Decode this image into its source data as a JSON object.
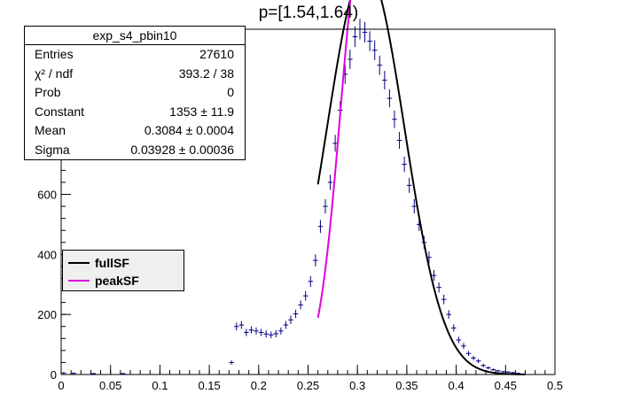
{
  "title": "p=[1.54,1.64)",
  "stats": {
    "name": "exp_s4_pbin10",
    "rows": [
      {
        "label": "Entries",
        "value": "27610"
      },
      {
        "label": "χ² / ndf",
        "value": "393.2 / 38"
      },
      {
        "label": "Prob",
        "value": "0"
      },
      {
        "label": "Constant",
        "value": "1353 ± 11.9"
      },
      {
        "label": "Mean",
        "value": "0.3084 ± 0.0004"
      },
      {
        "label": "Sigma",
        "value": "0.03928 ± 0.00036"
      }
    ]
  },
  "legend": {
    "items": [
      {
        "label": "fullSF",
        "color": "#000000"
      },
      {
        "label": "peakSF",
        "color": "#e000e0"
      }
    ]
  },
  "chart_data": {
    "type": "scatter",
    "title": "p=[1.54,1.64)",
    "xlim": [
      0,
      0.5
    ],
    "ylim": [
      0,
      1150
    ],
    "x_ticks": [
      "0",
      "0.05",
      "0.1",
      "0.15",
      "0.2",
      "0.25",
      "0.3",
      "0.35",
      "0.4",
      "0.45",
      "0.5"
    ],
    "y_ticks": [
      "0",
      "200",
      "400",
      "600",
      "800",
      "1000"
    ],
    "bin_width": 0.005,
    "series": [
      {
        "name": "exp_s4_pbin10",
        "marker": "cross",
        "color": "#000080",
        "x": [
          0.0025,
          0.0125,
          0.0325,
          0.0625,
          0.1725,
          0.1775,
          0.1825,
          0.1875,
          0.1925,
          0.1975,
          0.2025,
          0.2075,
          0.2125,
          0.2175,
          0.2225,
          0.2275,
          0.2325,
          0.2375,
          0.2425,
          0.2475,
          0.2525,
          0.2575,
          0.2625,
          0.2675,
          0.2725,
          0.2775,
          0.2825,
          0.2875,
          0.2925,
          0.2975,
          0.3025,
          0.3075,
          0.3125,
          0.3175,
          0.3225,
          0.3275,
          0.3325,
          0.3375,
          0.3425,
          0.3475,
          0.3525,
          0.3575,
          0.3625,
          0.3675,
          0.3725,
          0.3775,
          0.3825,
          0.3875,
          0.3925,
          0.3975,
          0.4025,
          0.4075,
          0.4125,
          0.4175,
          0.4225,
          0.4275,
          0.4325,
          0.4375,
          0.4425,
          0.4475,
          0.4525,
          0.4575,
          0.4625
        ],
        "y": [
          5,
          4,
          3,
          3,
          40,
          160,
          165,
          140,
          148,
          145,
          140,
          135,
          132,
          136,
          145,
          165,
          182,
          202,
          232,
          262,
          310,
          380,
          493,
          560,
          640,
          770,
          880,
          1000,
          1050,
          1125,
          1150,
          1140,
          1110,
          1080,
          1030,
          980,
          920,
          850,
          780,
          700,
          630,
          560,
          500,
          440,
          390,
          330,
          290,
          250,
          200,
          155,
          115,
          95,
          70,
          55,
          45,
          30,
          22,
          16,
          12,
          9,
          8,
          6,
          4
        ],
        "error": [
          3,
          3,
          2,
          2,
          7,
          13,
          13,
          12,
          12,
          12,
          12,
          12,
          11,
          12,
          12,
          13,
          14,
          14,
          15,
          16,
          18,
          20,
          22,
          24,
          25,
          28,
          30,
          32,
          32,
          34,
          34,
          34,
          33,
          33,
          32,
          31,
          30,
          29,
          28,
          26,
          25,
          24,
          22,
          21,
          20,
          18,
          17,
          16,
          14,
          12,
          11,
          10,
          8,
          7,
          7,
          6,
          5,
          4,
          4,
          3,
          3,
          3,
          2
        ]
      }
    ],
    "fits": [
      {
        "name": "fullSF",
        "color": "#000000",
        "function": "gaus",
        "constant": 1353,
        "mean": 0.3084,
        "sigma": 0.03928,
        "range": [
          0.26,
          0.47
        ]
      },
      {
        "name": "peakSF",
        "color": "#e000e0",
        "function": "gaus",
        "constant": 1460,
        "mean": 0.3055,
        "sigma": 0.0225,
        "range": [
          0.26,
          0.317
        ]
      }
    ]
  }
}
